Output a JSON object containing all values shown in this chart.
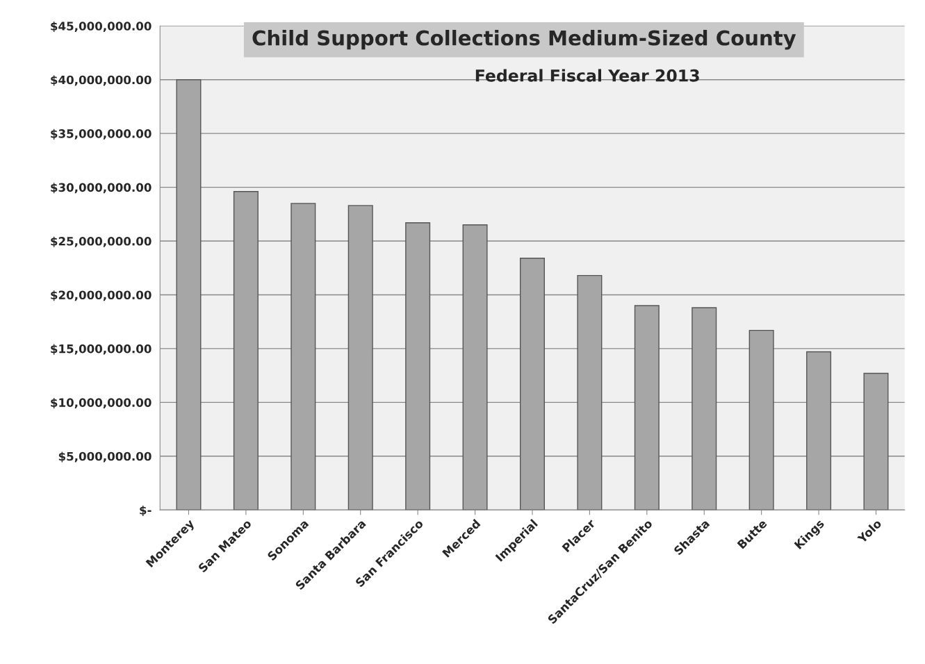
{
  "chart_data": {
    "type": "bar",
    "title": "Child Support Collections Medium-Sized County",
    "subtitle": "Federal Fiscal Year 2013",
    "categories": [
      "Monterey",
      "San Mateo",
      "Sonoma",
      "Santa Barbara",
      "San Francisco",
      "Merced",
      "Imperial",
      "Placer",
      "SantaCruz/San Benito",
      "Shasta",
      "Butte",
      "Kings",
      "Yolo"
    ],
    "values": [
      40000000,
      29600000,
      28500000,
      28300000,
      26700000,
      26500000,
      23400000,
      21800000,
      19000000,
      18800000,
      16700000,
      14700000,
      12700000
    ],
    "color": "#a6a6a6",
    "ylim": [
      0,
      45000000
    ],
    "yticks": [
      {
        "value": 0,
        "label": "$-"
      },
      {
        "value": 5000000,
        "label": "$5,000,000.00"
      },
      {
        "value": 10000000,
        "label": "$10,000,000.00"
      },
      {
        "value": 15000000,
        "label": "$15,000,000.00"
      },
      {
        "value": 20000000,
        "label": "$20,000,000.00"
      },
      {
        "value": 25000000,
        "label": "$25,000,000.00"
      },
      {
        "value": 30000000,
        "label": "$30,000,000.00"
      },
      {
        "value": 35000000,
        "label": "$35,000,000.00"
      },
      {
        "value": 40000000,
        "label": "$40,000,000.00"
      },
      {
        "value": 45000000,
        "label": "$45,000,000.00"
      }
    ],
    "grid": "y",
    "legend": false
  }
}
